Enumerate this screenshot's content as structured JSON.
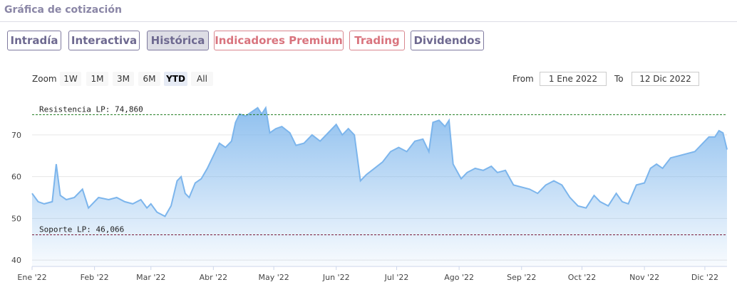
{
  "header": {
    "title": "Gráfica de cotización"
  },
  "tabs": [
    {
      "label": "Intradía",
      "active": false,
      "premium": false
    },
    {
      "label": "Interactiva",
      "active": false,
      "premium": false
    },
    {
      "label": "Histórica",
      "active": true,
      "premium": false
    },
    {
      "label": "Indicadores Premium",
      "active": false,
      "premium": true
    },
    {
      "label": "Trading",
      "active": false,
      "premium": true
    },
    {
      "label": "Dividendos",
      "active": false,
      "premium": false
    }
  ],
  "toolbar": {
    "zoom_label": "Zoom",
    "zoom_options": [
      "1W",
      "1M",
      "3M",
      "6M",
      "YTD",
      "All"
    ],
    "zoom_selected": "YTD",
    "from_label": "From",
    "from_value": "1 Ene 2022",
    "to_label": "To",
    "to_value": "12 Dic 2022"
  },
  "colors": {
    "accent": "#7f7a9f",
    "premium": "#d9747e",
    "line": "#7cb5ec",
    "resistance": "#1b7a1b",
    "support": "#7a1b3a"
  },
  "chart_data": {
    "type": "area",
    "x_ticks": [
      "Ene '22",
      "Feb '22",
      "Mar '22",
      "Abr '22",
      "May '22",
      "Jun '22",
      "Jul '22",
      "Ago '22",
      "Sep '22",
      "Oct '22",
      "Nov '22",
      "Dic '22"
    ],
    "y_ticks": [
      40,
      50,
      60,
      70
    ],
    "ylim": [
      38.5,
      79
    ],
    "x_start": "2022-01-01",
    "x_end": "2022-12-12",
    "grid": true,
    "reference_lines": [
      {
        "name": "Resistencia LP",
        "label": "Resistencia LP: 74,860",
        "value": 74.86
      },
      {
        "name": "Soporte LP",
        "label": "Soporte LP: 46,066",
        "value": 46.066
      }
    ],
    "series": [
      {
        "points": [
          [
            "2022-01-01",
            56.0
          ],
          [
            "2022-01-04",
            54.0
          ],
          [
            "2022-01-07",
            53.5
          ],
          [
            "2022-01-11",
            54.0
          ],
          [
            "2022-01-13",
            63.0
          ],
          [
            "2022-01-15",
            55.5
          ],
          [
            "2022-01-18",
            54.5
          ],
          [
            "2022-01-22",
            55.0
          ],
          [
            "2022-01-26",
            57.0
          ],
          [
            "2022-01-29",
            52.5
          ],
          [
            "2022-02-03",
            55.0
          ],
          [
            "2022-02-08",
            54.5
          ],
          [
            "2022-02-12",
            55.0
          ],
          [
            "2022-02-16",
            54.0
          ],
          [
            "2022-02-20",
            53.5
          ],
          [
            "2022-02-24",
            54.5
          ],
          [
            "2022-02-27",
            52.5
          ],
          [
            "2022-03-01",
            53.5
          ],
          [
            "2022-03-04",
            51.5
          ],
          [
            "2022-03-08",
            50.5
          ],
          [
            "2022-03-11",
            53.0
          ],
          [
            "2022-03-14",
            59.0
          ],
          [
            "2022-03-16",
            60.0
          ],
          [
            "2022-03-18",
            56.0
          ],
          [
            "2022-03-20",
            55.0
          ],
          [
            "2022-03-23",
            58.5
          ],
          [
            "2022-03-26",
            59.5
          ],
          [
            "2022-03-29",
            62.0
          ],
          [
            "2022-04-01",
            65.0
          ],
          [
            "2022-04-04",
            68.0
          ],
          [
            "2022-04-07",
            67.0
          ],
          [
            "2022-04-10",
            68.5
          ],
          [
            "2022-04-12",
            73.0
          ],
          [
            "2022-04-14",
            75.0
          ],
          [
            "2022-04-17",
            74.5
          ],
          [
            "2022-04-20",
            75.5
          ],
          [
            "2022-04-23",
            76.5
          ],
          [
            "2022-04-25",
            75.0
          ],
          [
            "2022-04-27",
            76.5
          ],
          [
            "2022-04-29",
            70.5
          ],
          [
            "2022-05-02",
            71.5
          ],
          [
            "2022-05-05",
            72.0
          ],
          [
            "2022-05-09",
            70.5
          ],
          [
            "2022-05-12",
            67.5
          ],
          [
            "2022-05-16",
            68.0
          ],
          [
            "2022-05-20",
            70.0
          ],
          [
            "2022-05-24",
            68.5
          ],
          [
            "2022-05-28",
            70.5
          ],
          [
            "2022-06-01",
            72.5
          ],
          [
            "2022-06-04",
            70.0
          ],
          [
            "2022-06-07",
            71.5
          ],
          [
            "2022-06-10",
            70.0
          ],
          [
            "2022-06-13",
            59.0
          ],
          [
            "2022-06-16",
            60.5
          ],
          [
            "2022-06-20",
            62.0
          ],
          [
            "2022-06-24",
            63.5
          ],
          [
            "2022-06-28",
            66.0
          ],
          [
            "2022-07-02",
            67.0
          ],
          [
            "2022-07-06",
            66.0
          ],
          [
            "2022-07-10",
            68.5
          ],
          [
            "2022-07-14",
            69.0
          ],
          [
            "2022-07-17",
            66.0
          ],
          [
            "2022-07-19",
            73.0
          ],
          [
            "2022-07-22",
            73.5
          ],
          [
            "2022-07-25",
            72.0
          ],
          [
            "2022-07-27",
            73.5
          ],
          [
            "2022-07-29",
            63.0
          ],
          [
            "2022-08-02",
            59.5
          ],
          [
            "2022-08-05",
            61.0
          ],
          [
            "2022-08-09",
            62.0
          ],
          [
            "2022-08-13",
            61.5
          ],
          [
            "2022-08-17",
            62.5
          ],
          [
            "2022-08-20",
            61.0
          ],
          [
            "2022-08-24",
            61.5
          ],
          [
            "2022-08-28",
            58.0
          ],
          [
            "2022-09-01",
            57.5
          ],
          [
            "2022-09-05",
            57.0
          ],
          [
            "2022-09-09",
            56.0
          ],
          [
            "2022-09-13",
            58.0
          ],
          [
            "2022-09-17",
            59.0
          ],
          [
            "2022-09-21",
            58.0
          ],
          [
            "2022-09-25",
            55.0
          ],
          [
            "2022-09-29",
            53.0
          ],
          [
            "2022-10-03",
            52.5
          ],
          [
            "2022-10-07",
            55.5
          ],
          [
            "2022-10-10",
            54.0
          ],
          [
            "2022-10-14",
            53.0
          ],
          [
            "2022-10-18",
            56.0
          ],
          [
            "2022-10-21",
            54.0
          ],
          [
            "2022-10-24",
            53.5
          ],
          [
            "2022-10-28",
            58.0
          ],
          [
            "2022-11-01",
            58.5
          ],
          [
            "2022-11-04",
            62.0
          ],
          [
            "2022-11-07",
            63.0
          ],
          [
            "2022-11-10",
            62.0
          ],
          [
            "2022-11-14",
            64.5
          ],
          [
            "2022-11-18",
            65.0
          ],
          [
            "2022-11-22",
            65.5
          ],
          [
            "2022-11-26",
            66.0
          ],
          [
            "2022-11-30",
            68.0
          ],
          [
            "2022-12-03",
            69.5
          ],
          [
            "2022-12-06",
            69.5
          ],
          [
            "2022-12-08",
            71.0
          ],
          [
            "2022-12-10",
            70.5
          ],
          [
            "2022-12-12",
            66.5
          ]
        ]
      }
    ]
  }
}
